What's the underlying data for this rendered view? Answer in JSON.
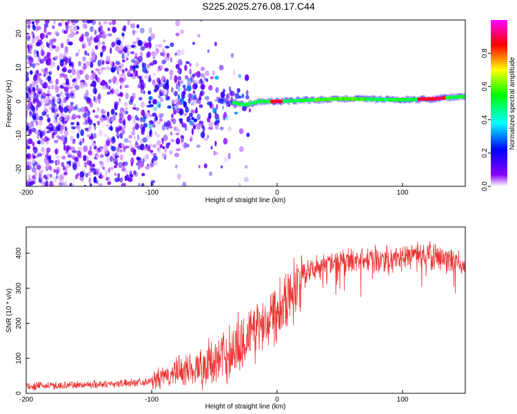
{
  "title": "S225.2025.276.08.17.C44",
  "chart_data": [
    {
      "type": "heatmap",
      "title": "S225.2025.276.08.17.C44",
      "xlabel": "Height of straight line (km)",
      "ylabel": "Frequency (Hz)",
      "xlim": [
        -200,
        150
      ],
      "ylim": [
        -25,
        24
      ],
      "x_ticks": [
        -200,
        -100,
        0,
        100
      ],
      "x_tick_labels": [
        "-200",
        "-100",
        "0",
        "100"
      ],
      "y_ticks": [
        -20,
        -10,
        0,
        10,
        20
      ],
      "y_tick_labels": [
        "-20",
        "-10",
        "0",
        "10",
        "20"
      ],
      "colorbar": {
        "label": "Normalized spectral amplitude",
        "range": [
          0,
          1
        ],
        "ticks": [
          0,
          0.2,
          0.4,
          0.6,
          0.8
        ],
        "tick_labels": [
          "0.0",
          "0.2",
          "0.4",
          "0.6",
          "0.8"
        ],
        "colormap": [
          "#ffffff",
          "#8800ff",
          "#0000ff",
          "#00ffff",
          "#00ff00",
          "#ffff00",
          "#ff0000",
          "#ff00ff"
        ]
      },
      "description_features": {
        "noise_region_x": [
          -200,
          -30
        ],
        "signal_line": [
          {
            "x": -60,
            "f": 1.5
          },
          {
            "x": -40,
            "f": 0
          },
          {
            "x": -25,
            "f": -1
          },
          {
            "x": -15,
            "f": 0
          },
          {
            "x": 0,
            "f": 0
          },
          {
            "x": 50,
            "f": 0.8
          },
          {
            "x": 100,
            "f": 0.5
          },
          {
            "x": 125,
            "f": 0.8
          },
          {
            "x": 150,
            "f": 1.5
          }
        ]
      }
    },
    {
      "type": "line",
      "xlabel": "Height of straight line (km)",
      "ylabel": "SNR (10 * v/v)",
      "xlim": [
        -200,
        150
      ],
      "ylim": [
        0,
        475
      ],
      "x_ticks": [
        -200,
        -100,
        0,
        100
      ],
      "x_tick_labels": [
        "-200",
        "-100",
        "0",
        "100"
      ],
      "y_ticks": [
        0,
        100,
        200,
        300,
        400
      ],
      "y_tick_labels": [
        "0",
        "100",
        "200",
        "300",
        "400"
      ],
      "color": "#ee3333",
      "series": [
        {
          "name": "SNR",
          "x": [
            -200,
            -175,
            -150,
            -125,
            -100,
            -90,
            -80,
            -70,
            -60,
            -50,
            -40,
            -30,
            -25,
            -20,
            -15,
            -10,
            -5,
            0,
            5,
            10,
            15,
            20,
            25,
            30,
            40,
            50,
            60,
            70,
            80,
            90,
            100,
            110,
            120,
            130,
            140,
            150
          ],
          "y": [
            20,
            22,
            25,
            28,
            35,
            45,
            60,
            70,
            75,
            90,
            110,
            140,
            160,
            175,
            190,
            205,
            225,
            245,
            265,
            285,
            310,
            330,
            345,
            360,
            370,
            375,
            380,
            380,
            382,
            385,
            390,
            390,
            392,
            388,
            375,
            360
          ]
        }
      ]
    }
  ]
}
